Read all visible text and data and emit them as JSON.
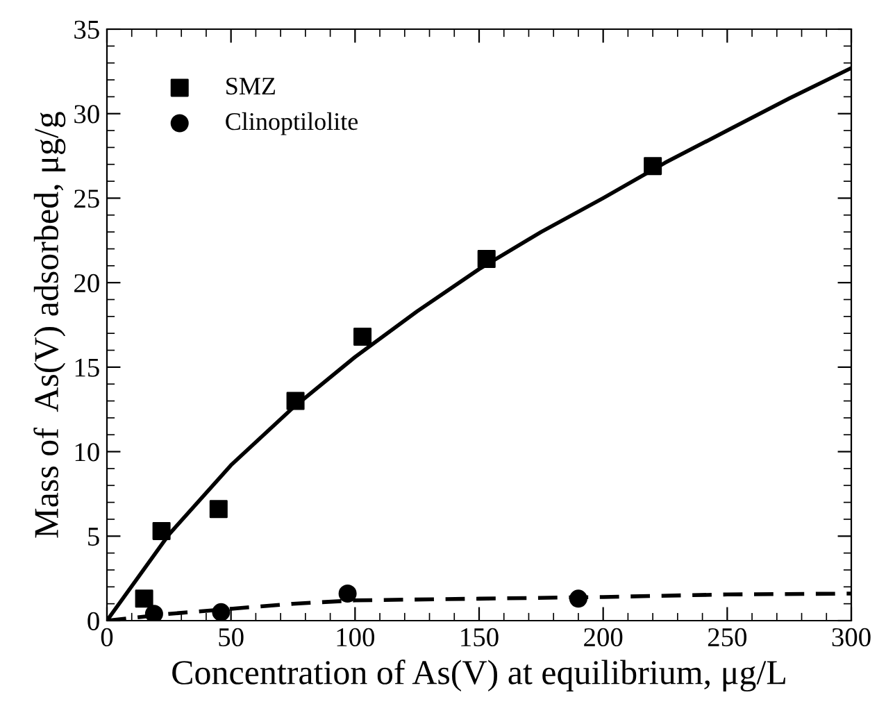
{
  "chart_data": {
    "type": "scatter",
    "xlabel": "Concentration of As(V) at equilibrium, μg/L",
    "ylabel": "Mass of  As(V) adsorbed, μg/g",
    "xlim": [
      0,
      300
    ],
    "ylim": [
      0,
      35
    ],
    "xticks": [
      0,
      50,
      100,
      150,
      200,
      250,
      300
    ],
    "yticks": [
      0,
      5,
      10,
      15,
      20,
      25,
      30,
      35
    ],
    "grid": false,
    "legend": "top left",
    "series": [
      {
        "name": "SMZ",
        "marker": "square",
        "color": "#000000",
        "x": [
          15,
          22,
          45,
          76,
          103,
          153,
          220
        ],
        "values": [
          1.3,
          5.3,
          6.6,
          13,
          16.8,
          21.4,
          26.9
        ]
      },
      {
        "name": "Clinoptilolite",
        "marker": "circle",
        "color": "#000000",
        "x": [
          19,
          46,
          97,
          190
        ],
        "values": [
          0.4,
          0.5,
          1.6,
          1.3
        ]
      },
      {
        "type": "line",
        "line_style": "solid",
        "color": "#000000",
        "x": [
          0,
          25,
          50,
          75,
          100,
          125,
          150,
          175,
          200,
          225,
          250,
          275,
          300
        ],
        "values": [
          0,
          5.1,
          9.2,
          12.6,
          15.6,
          18.3,
          20.8,
          23,
          25,
          27.1,
          29,
          30.9,
          32.7
        ]
      },
      {
        "type": "line",
        "line_style": "dashed",
        "color": "#000000",
        "x": [
          0,
          25,
          50,
          75,
          100,
          150,
          200,
          250,
          300
        ],
        "values": [
          0,
          0.4,
          0.7,
          1.0,
          1.2,
          1.3,
          1.4,
          1.55,
          1.6
        ]
      }
    ]
  }
}
